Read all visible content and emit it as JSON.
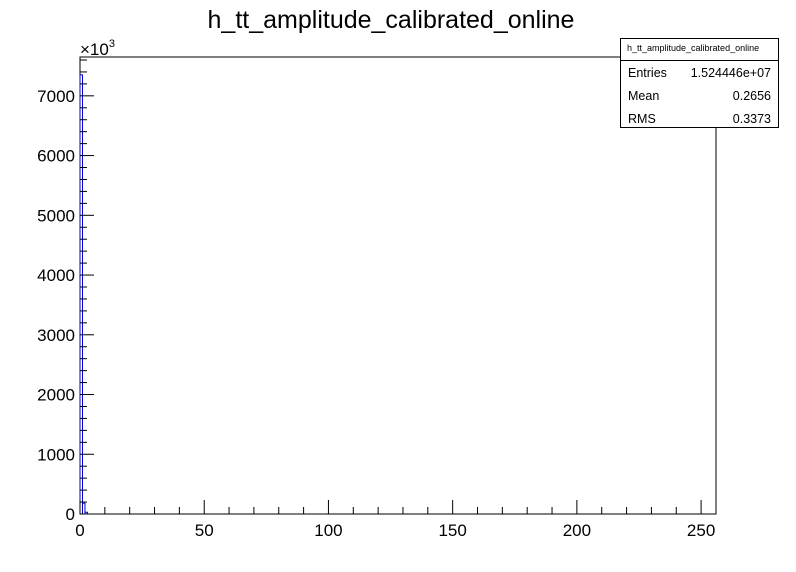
{
  "chart_data": {
    "type": "bar",
    "title": "h_tt_amplitude_calibrated_online",
    "xlabel": "",
    "ylabel": "",
    "x_ticks": [
      "0",
      "50",
      "100",
      "150",
      "200",
      "250"
    ],
    "y_ticks": [
      "0",
      "1000",
      "2000",
      "3000",
      "4000",
      "5000",
      "6000",
      "7000"
    ],
    "y_multiplier": {
      "base": "×10",
      "exponent": "3"
    },
    "xlim": [
      0,
      256
    ],
    "ylim": [
      0,
      7650
    ],
    "bins": [
      {
        "x0": 0,
        "x1": 1,
        "value": 7350
      },
      {
        "x0": 1,
        "x1": 2,
        "value": 180
      },
      {
        "x0": 2,
        "x1": 3,
        "value": 30
      }
    ],
    "series_color": "#0000cc",
    "grid": false,
    "stats": {
      "title": "h_tt_amplitude_calibrated_online",
      "rows": [
        {
          "label": "Entries",
          "value": "1.524446e+07"
        },
        {
          "label": "Mean",
          "value": "0.2656"
        },
        {
          "label": "RMS",
          "value": "0.3373"
        }
      ]
    }
  }
}
